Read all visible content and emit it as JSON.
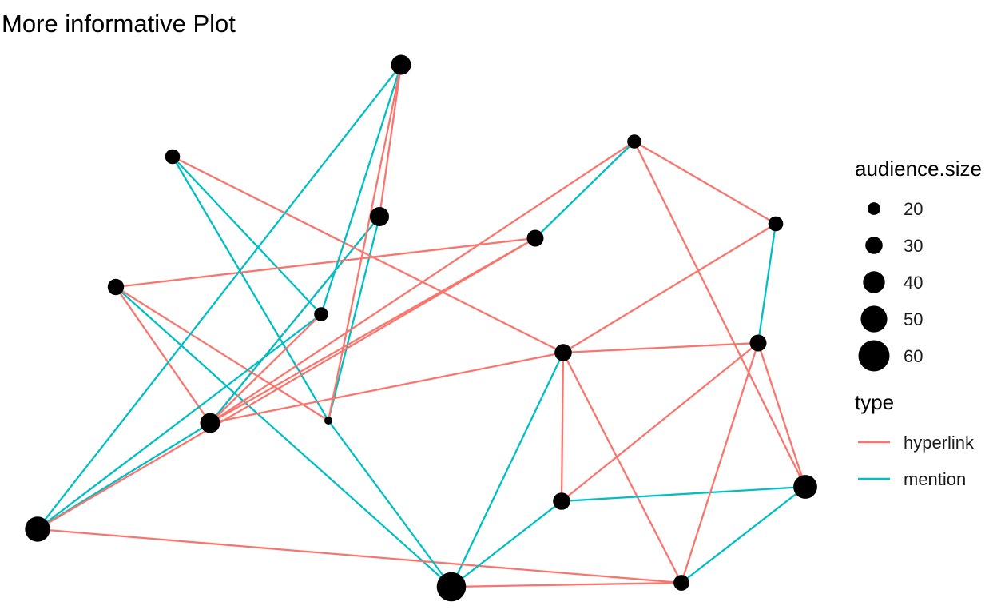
{
  "title": "More informative Plot",
  "legend": {
    "size_title": "audience.size",
    "size_breaks": [
      {
        "label": "20",
        "value": 20
      },
      {
        "label": "30",
        "value": 30
      },
      {
        "label": "40",
        "value": 40
      },
      {
        "label": "50",
        "value": 50
      },
      {
        "label": "60",
        "value": 60
      }
    ],
    "type_title": "type",
    "types": [
      {
        "label": "hyperlink",
        "color": "#F8766D"
      },
      {
        "label": "mention",
        "color": "#00BFC4"
      }
    ]
  },
  "colors": {
    "hyperlink": "#F8766D",
    "mention": "#00BFC4",
    "node": "#000000"
  },
  "nodes": [
    {
      "id": 0,
      "size": 34
    },
    {
      "id": 1,
      "size": 25
    },
    {
      "id": 2,
      "size": 28
    },
    {
      "id": 3,
      "size": 23
    },
    {
      "id": 4,
      "size": 36
    },
    {
      "id": 5,
      "size": 29
    },
    {
      "id": 6,
      "size": 23
    },
    {
      "id": 7,
      "size": 36
    },
    {
      "id": 8,
      "size": 30
    },
    {
      "id": 9,
      "size": 25
    },
    {
      "id": 10,
      "size": 47
    },
    {
      "id": 11,
      "size": 10
    },
    {
      "id": 12,
      "size": 29
    },
    {
      "id": 13,
      "size": 30
    },
    {
      "id": 14,
      "size": 44
    },
    {
      "id": 15,
      "size": 56
    },
    {
      "id": 16,
      "size": 27
    }
  ],
  "edges": [
    {
      "from": 0,
      "to": 4,
      "type": "hyperlink"
    },
    {
      "from": 0,
      "to": 7,
      "type": "hyperlink"
    },
    {
      "from": 0,
      "to": 4,
      "type": "mention"
    },
    {
      "from": 0,
      "to": 11,
      "type": "mention"
    },
    {
      "from": 1,
      "to": 8,
      "type": "hyperlink"
    },
    {
      "from": 1,
      "to": 11,
      "type": "mention"
    },
    {
      "from": 1,
      "to": 3,
      "type": "mention"
    },
    {
      "from": 2,
      "to": 4,
      "type": "hyperlink"
    },
    {
      "from": 2,
      "to": 15,
      "type": "mention"
    },
    {
      "from": 2,
      "to": 11,
      "type": "hyperlink"
    },
    {
      "from": 2,
      "to": 5,
      "type": "hyperlink"
    },
    {
      "from": 3,
      "to": 7,
      "type": "mention"
    },
    {
      "from": 3,
      "to": 10,
      "type": "mention"
    },
    {
      "from": 3,
      "to": 4,
      "type": "hyperlink"
    },
    {
      "from": 4,
      "to": 8,
      "type": "hyperlink"
    },
    {
      "from": 4,
      "to": 10,
      "type": "mention"
    },
    {
      "from": 4,
      "to": 5,
      "type": "hyperlink"
    },
    {
      "from": 4,
      "to": 6,
      "type": "hyperlink"
    },
    {
      "from": 5,
      "to": 10,
      "type": "hyperlink"
    },
    {
      "from": 5,
      "to": 6,
      "type": "mention"
    },
    {
      "from": 6,
      "to": 9,
      "type": "hyperlink"
    },
    {
      "from": 6,
      "to": 14,
      "type": "hyperlink"
    },
    {
      "from": 7,
      "to": 10,
      "type": "mention"
    },
    {
      "from": 7,
      "to": 11,
      "type": "hyperlink"
    },
    {
      "from": 8,
      "to": 9,
      "type": "hyperlink"
    },
    {
      "from": 8,
      "to": 12,
      "type": "hyperlink"
    },
    {
      "from": 8,
      "to": 13,
      "type": "hyperlink"
    },
    {
      "from": 8,
      "to": 15,
      "type": "mention"
    },
    {
      "from": 8,
      "to": 16,
      "type": "hyperlink"
    },
    {
      "from": 9,
      "to": 12,
      "type": "mention"
    },
    {
      "from": 10,
      "to": 16,
      "type": "hyperlink"
    },
    {
      "from": 11,
      "to": 15,
      "type": "mention"
    },
    {
      "from": 12,
      "to": 13,
      "type": "hyperlink"
    },
    {
      "from": 12,
      "to": 14,
      "type": "hyperlink"
    },
    {
      "from": 13,
      "to": 14,
      "type": "mention"
    },
    {
      "from": 13,
      "to": 15,
      "type": "mention"
    },
    {
      "from": 14,
      "to": 16,
      "type": "mention"
    },
    {
      "from": 15,
      "to": 16,
      "type": "hyperlink"
    },
    {
      "from": 12,
      "to": 16,
      "type": "hyperlink"
    }
  ]
}
